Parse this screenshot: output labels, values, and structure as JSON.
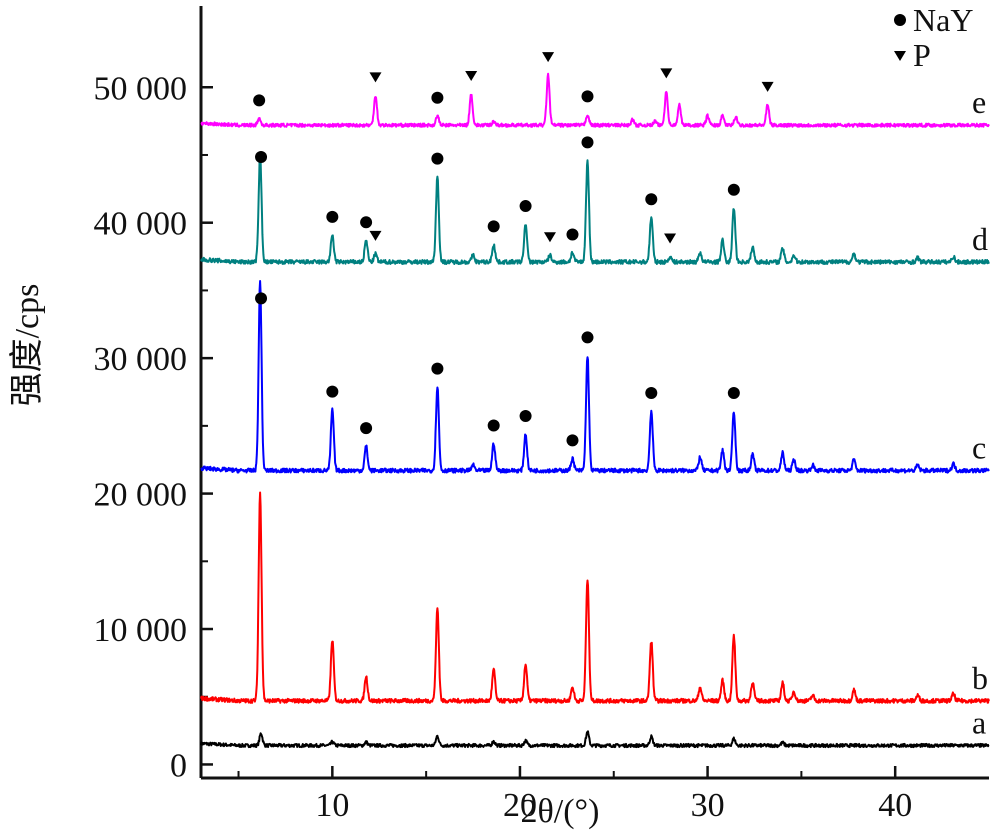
{
  "chart_data": {
    "type": "line",
    "xlabel": "2θ/(°)",
    "ylabel": "强度/cps",
    "xlim": [
      3,
      45
    ],
    "ylim": [
      -1000,
      56000
    ],
    "x_ticks": [
      10,
      20,
      30,
      40
    ],
    "y_ticks": [
      {
        "value": 0,
        "label": "0"
      },
      {
        "value": 10000,
        "label": "10 000"
      },
      {
        "value": 20000,
        "label": "20 000"
      },
      {
        "value": 30000,
        "label": "30 000"
      },
      {
        "value": 40000,
        "label": "40 000"
      },
      {
        "value": 50000,
        "label": "50 000"
      }
    ],
    "legend": {
      "placement": "top-right",
      "items": [
        {
          "marker": "circle",
          "label": "NaY"
        },
        {
          "marker": "triangle-down",
          "label": "P"
        }
      ]
    },
    "series": [
      {
        "name": "a",
        "color": "#000000",
        "baseline": 1400,
        "noise": 120,
        "peaks": [
          [
            6.2,
            900
          ],
          [
            10.0,
            250
          ],
          [
            11.8,
            250
          ],
          [
            15.6,
            700
          ],
          [
            18.6,
            300
          ],
          [
            20.3,
            350
          ],
          [
            23.6,
            1000
          ],
          [
            27.0,
            650
          ],
          [
            31.4,
            500
          ],
          [
            34.0,
            200
          ]
        ]
      },
      {
        "name": "b",
        "color": "#ff0000",
        "baseline": 4700,
        "noise": 150,
        "peaks": [
          [
            6.15,
            15300
          ],
          [
            10.0,
            4500
          ],
          [
            11.8,
            1800
          ],
          [
            15.6,
            6800
          ],
          [
            18.6,
            2300
          ],
          [
            20.3,
            2700
          ],
          [
            22.8,
            1000
          ],
          [
            23.6,
            9000
          ],
          [
            27.0,
            4400
          ],
          [
            29.6,
            1000
          ],
          [
            30.8,
            1500
          ],
          [
            31.4,
            4800
          ],
          [
            32.4,
            1400
          ],
          [
            34.0,
            1300
          ],
          [
            34.6,
            700
          ],
          [
            35.6,
            400
          ],
          [
            37.8,
            800
          ],
          [
            41.2,
            400
          ],
          [
            43.1,
            500
          ]
        ]
      },
      {
        "name": "c",
        "color": "#0000ff",
        "baseline": 21700,
        "noise": 150,
        "peaks": [
          [
            6.15,
            14000
          ],
          [
            10.0,
            4500
          ],
          [
            11.8,
            1800
          ],
          [
            15.6,
            6200
          ],
          [
            17.5,
            400
          ],
          [
            18.6,
            2000
          ],
          [
            20.3,
            2700
          ],
          [
            22.8,
            900
          ],
          [
            23.6,
            8500
          ],
          [
            27.0,
            4400
          ],
          [
            29.6,
            1000
          ],
          [
            30.8,
            1500
          ],
          [
            31.4,
            4400
          ],
          [
            32.4,
            1200
          ],
          [
            34.0,
            1300
          ],
          [
            34.6,
            800
          ],
          [
            35.6,
            400
          ],
          [
            37.8,
            800
          ],
          [
            41.2,
            400
          ],
          [
            43.1,
            500
          ]
        ]
      },
      {
        "name": "d",
        "color": "#008080",
        "baseline": 37100,
        "noise": 150,
        "peaks": [
          [
            6.15,
            7900
          ],
          [
            10.0,
            2000
          ],
          [
            11.8,
            1600
          ],
          [
            12.3,
            600
          ],
          [
            15.6,
            6300
          ],
          [
            17.5,
            500
          ],
          [
            18.6,
            1300
          ],
          [
            20.3,
            2800
          ],
          [
            21.6,
            500
          ],
          [
            22.8,
            700
          ],
          [
            23.6,
            7500
          ],
          [
            27.0,
            3300
          ],
          [
            28.0,
            400
          ],
          [
            29.6,
            700
          ],
          [
            30.8,
            1600
          ],
          [
            31.4,
            4000
          ],
          [
            32.4,
            1100
          ],
          [
            34.0,
            1000
          ],
          [
            34.6,
            500
          ],
          [
            37.8,
            600
          ],
          [
            41.2,
            300
          ],
          [
            43.1,
            400
          ]
        ]
      },
      {
        "name": "e",
        "color": "#ff00ff",
        "baseline": 47200,
        "noise": 120,
        "peaks": [
          [
            6.1,
            500
          ],
          [
            12.3,
            2200
          ],
          [
            15.6,
            700
          ],
          [
            17.4,
            2300
          ],
          [
            18.6,
            300
          ],
          [
            21.5,
            3700
          ],
          [
            23.6,
            800
          ],
          [
            26.0,
            400
          ],
          [
            27.2,
            300
          ],
          [
            27.8,
            2500
          ],
          [
            28.5,
            1500
          ],
          [
            30.0,
            700
          ],
          [
            30.8,
            700
          ],
          [
            31.5,
            600
          ],
          [
            33.2,
            1500
          ]
        ]
      }
    ],
    "markers": {
      "NaY": [
        {
          "series": "e",
          "x": 6.1
        },
        {
          "series": "e",
          "x": 15.6
        },
        {
          "series": "e",
          "x": 23.6
        },
        {
          "series": "d",
          "x": 6.2
        },
        {
          "series": "d",
          "x": 10.0
        },
        {
          "series": "d",
          "x": 11.8
        },
        {
          "series": "d",
          "x": 15.6
        },
        {
          "series": "d",
          "x": 18.6
        },
        {
          "series": "d",
          "x": 20.3
        },
        {
          "series": "d",
          "x": 22.8
        },
        {
          "series": "d",
          "x": 23.6
        },
        {
          "series": "d",
          "x": 27.0
        },
        {
          "series": "d",
          "x": 31.4
        },
        {
          "series": "c",
          "x": 6.2
        },
        {
          "series": "c",
          "x": 10.0
        },
        {
          "series": "c",
          "x": 11.8
        },
        {
          "series": "c",
          "x": 15.6
        },
        {
          "series": "c",
          "x": 18.6
        },
        {
          "series": "c",
          "x": 20.3
        },
        {
          "series": "c",
          "x": 22.8
        },
        {
          "series": "c",
          "x": 23.6
        },
        {
          "series": "c",
          "x": 27.0
        },
        {
          "series": "c",
          "x": 31.4
        }
      ],
      "P": [
        {
          "series": "e",
          "x": 12.3
        },
        {
          "series": "e",
          "x": 17.4
        },
        {
          "series": "e",
          "x": 21.5
        },
        {
          "series": "e",
          "x": 27.8
        },
        {
          "series": "e",
          "x": 33.2
        },
        {
          "series": "d",
          "x": 12.3
        },
        {
          "series": "d",
          "x": 21.6
        },
        {
          "series": "d",
          "x": 28.0
        }
      ]
    }
  }
}
